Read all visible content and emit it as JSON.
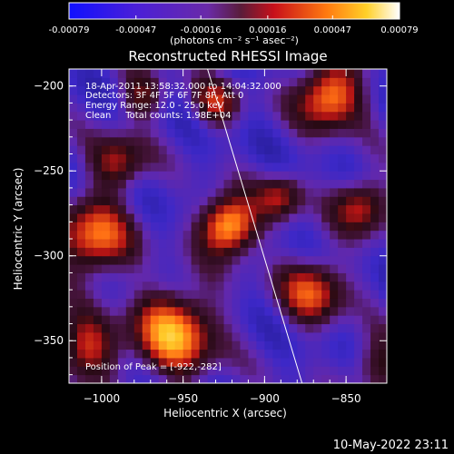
{
  "chart_data": {
    "type": "heatmap",
    "title": "Reconstructed RHESSI Image",
    "xlabel": "Heliocentric X (arcsec)",
    "ylabel": "Heliocentric Y (arcsec)",
    "xlim": [
      -1020,
      -825
    ],
    "ylim": [
      -375,
      -190
    ],
    "xticks": [
      -1000,
      -950,
      -900,
      -850
    ],
    "yticks": [
      -200,
      -250,
      -300,
      -350
    ],
    "colorbar": {
      "units": "(photons cm⁻² s⁻¹ asec⁻²)",
      "range": [
        -0.00079,
        0.00079
      ],
      "ticks": [
        "-0.00079",
        "-0.00047",
        "-0.00016",
        "0.00016",
        "0.00047",
        "0.00079"
      ],
      "tick_values": [
        -0.00079,
        -0.00047,
        -0.00016,
        0.00016,
        0.00047,
        0.00079
      ]
    },
    "peak": {
      "x": -922,
      "y": -282
    },
    "limb_line": {
      "x": [
        -935,
        -877
      ],
      "y": [
        -190,
        -375
      ]
    },
    "annotations": [
      "18-Apr-2011 13:58:32.000 to 14:04:32.000",
      "Detectors: 3F 4F 5F 6F 7F 8F, Att 0",
      "Energy Range: 12.0 - 25.0 keV",
      "Clean     Total counts: 1.98E+04",
      "Position of Peak = [-922,-282]"
    ],
    "sources": [
      {
        "x": -922,
        "y": -282,
        "amp": 1.0,
        "r": 12
      },
      {
        "x": -955,
        "y": -345,
        "amp": 0.85,
        "r": 18
      },
      {
        "x": -1005,
        "y": -290,
        "amp": 0.75,
        "r": 16
      },
      {
        "x": -860,
        "y": -205,
        "amp": 0.85,
        "r": 14
      },
      {
        "x": -870,
        "y": -320,
        "amp": 0.65,
        "r": 14
      },
      {
        "x": -990,
        "y": -245,
        "amp": 0.55,
        "r": 12
      },
      {
        "x": -1010,
        "y": -355,
        "amp": 0.6,
        "r": 14
      },
      {
        "x": -840,
        "y": -270,
        "amp": 0.6,
        "r": 12
      },
      {
        "x": -930,
        "y": -210,
        "amp": 0.5,
        "r": 10
      },
      {
        "x": -890,
        "y": -265,
        "amp": 0.5,
        "r": 10
      },
      {
        "x": -830,
        "y": -365,
        "amp": 0.45,
        "r": 12
      },
      {
        "x": -975,
        "y": -205,
        "amp": 0.45,
        "r": 10
      }
    ]
  },
  "footer": {
    "timestamp": "10-May-2022 23:11"
  }
}
